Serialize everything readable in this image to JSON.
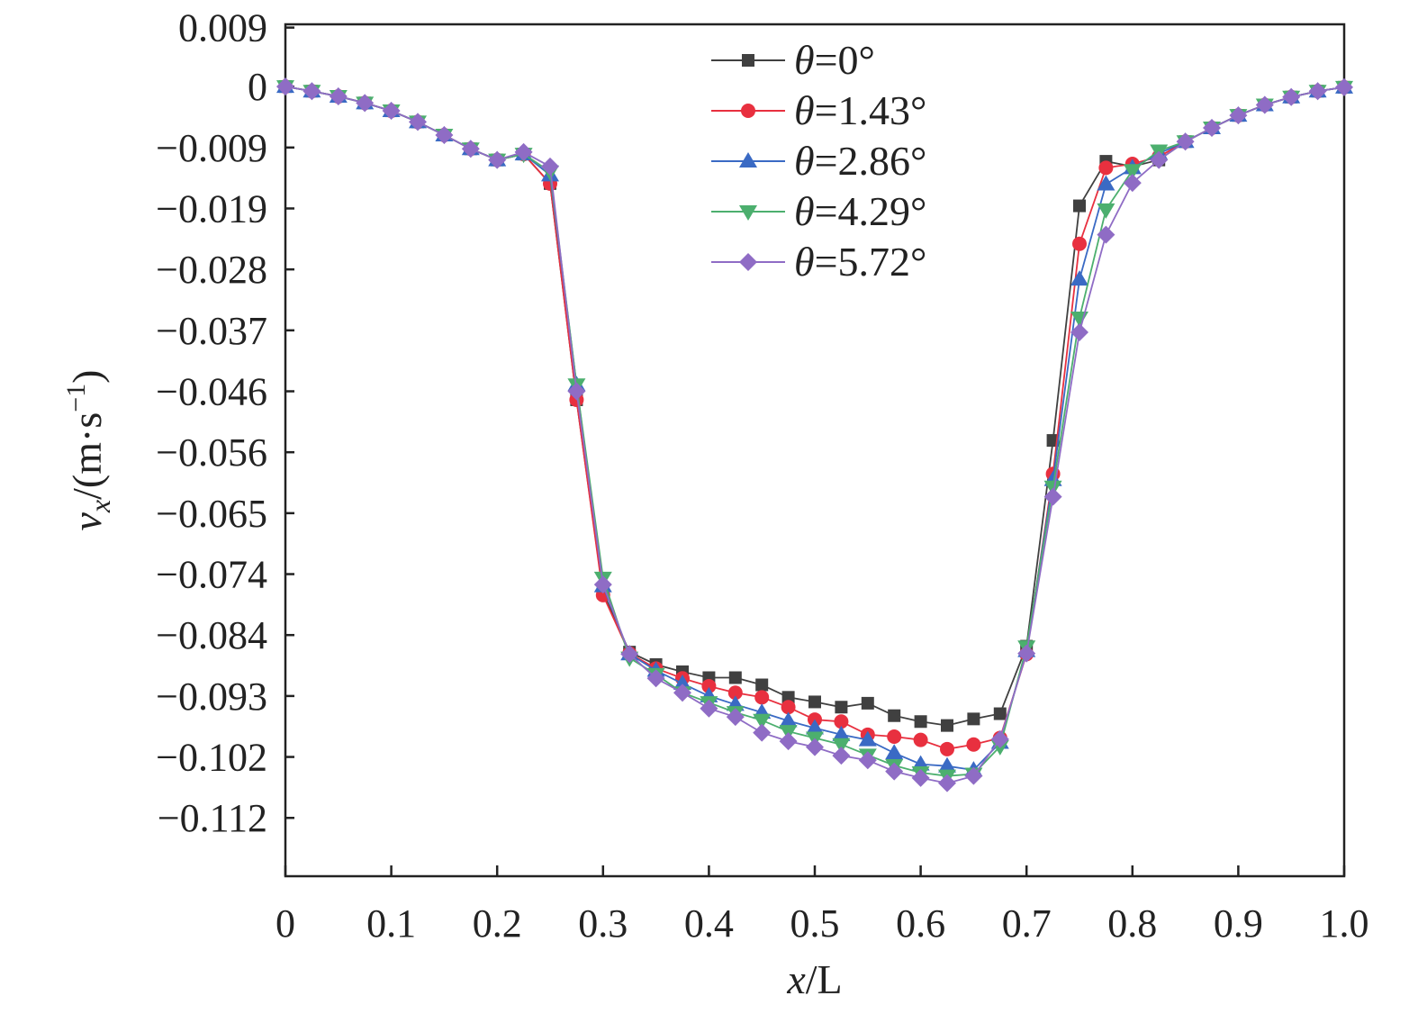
{
  "chart_data": {
    "type": "line",
    "title": "",
    "xlabel": {
      "var": "x",
      "rest": "/L"
    },
    "ylabel": {
      "var": "v",
      "sub": "x",
      "rest": "/(m·s",
      "sup": "−1",
      "close": ")"
    },
    "xlim": [
      0,
      1.0
    ],
    "ylim": [
      -0.1205,
      0.0095
    ],
    "xticks": [
      {
        "v": 0,
        "label": "0"
      },
      {
        "v": 0.1,
        "label": "0.1"
      },
      {
        "v": 0.2,
        "label": "0.2"
      },
      {
        "v": 0.3,
        "label": "0.3"
      },
      {
        "v": 0.4,
        "label": "0.4"
      },
      {
        "v": 0.5,
        "label": "0.5"
      },
      {
        "v": 0.6,
        "label": "0.6"
      },
      {
        "v": 0.7,
        "label": "0.7"
      },
      {
        "v": 0.8,
        "label": "0.8"
      },
      {
        "v": 0.9,
        "label": "0.9"
      },
      {
        "v": 1.0,
        "label": "1.0"
      }
    ],
    "yticks": [
      {
        "v": 0.009,
        "label": "0.009"
      },
      {
        "v": 0,
        "label": "0"
      },
      {
        "v": -0.0093,
        "label": "−0.009"
      },
      {
        "v": -0.0186,
        "label": "−0.019"
      },
      {
        "v": -0.0279,
        "label": "−0.028"
      },
      {
        "v": -0.0372,
        "label": "−0.037"
      },
      {
        "v": -0.0465,
        "label": "−0.046"
      },
      {
        "v": -0.0558,
        "label": "−0.056"
      },
      {
        "v": -0.0651,
        "label": "−0.065"
      },
      {
        "v": -0.0744,
        "label": "−0.074"
      },
      {
        "v": -0.0837,
        "label": "−0.084"
      },
      {
        "v": -0.093,
        "label": "−0.093"
      },
      {
        "v": -0.1023,
        "label": "−0.102"
      },
      {
        "v": -0.1116,
        "label": "−0.112"
      }
    ],
    "grid": false,
    "legend_position": "top-center",
    "x": [
      0,
      0.025,
      0.05,
      0.075,
      0.1,
      0.125,
      0.15,
      0.175,
      0.2,
      0.225,
      0.25,
      0.275,
      0.3,
      0.325,
      0.35,
      0.375,
      0.4,
      0.425,
      0.45,
      0.475,
      0.5,
      0.525,
      0.55,
      0.575,
      0.6,
      0.625,
      0.65,
      0.675,
      0.7,
      0.725,
      0.75,
      0.775,
      0.8,
      0.825,
      0.85,
      0.875,
      0.9,
      0.925,
      0.95,
      0.975,
      1.0
    ],
    "series": [
      {
        "var": "θ",
        "label": "=0°",
        "color": "#404040",
        "marker": "square",
        "values": [
          0,
          -0.0007,
          -0.0015,
          -0.0025,
          -0.0037,
          -0.0054,
          -0.0074,
          -0.0095,
          -0.0112,
          -0.0103,
          -0.0148,
          -0.0478,
          -0.0772,
          -0.0863,
          -0.0882,
          -0.0893,
          -0.0902,
          -0.0902,
          -0.0913,
          -0.0932,
          -0.0939,
          -0.0947,
          -0.0941,
          -0.096,
          -0.0969,
          -0.0975,
          -0.0965,
          -0.0957,
          -0.0854,
          -0.054,
          -0.0182,
          -0.0114,
          -0.0122,
          -0.0112,
          -0.0084,
          -0.0063,
          -0.0044,
          -0.0028,
          -0.0016,
          -0.0007,
          -0.0001
        ]
      },
      {
        "var": "θ",
        "label": "=1.43°",
        "color": "#e8303f",
        "marker": "circle",
        "values": [
          0,
          -0.0007,
          -0.0015,
          -0.0025,
          -0.0037,
          -0.0054,
          -0.0074,
          -0.0095,
          -0.0112,
          -0.0103,
          -0.0148,
          -0.0478,
          -0.0776,
          -0.0865,
          -0.0888,
          -0.0903,
          -0.0915,
          -0.0925,
          -0.0932,
          -0.0947,
          -0.0966,
          -0.0969,
          -0.0989,
          -0.0992,
          -0.0997,
          -0.1011,
          -0.1004,
          -0.0994,
          -0.0866,
          -0.0591,
          -0.024,
          -0.0124,
          -0.0118,
          -0.0107,
          -0.0084,
          -0.0063,
          -0.0044,
          -0.0028,
          -0.0016,
          -0.0007,
          -0.0001
        ]
      },
      {
        "var": "θ",
        "label": "=2.86°",
        "color": "#3a6ac4",
        "marker": "triangle-up",
        "values": [
          0,
          -0.0007,
          -0.0015,
          -0.0025,
          -0.0037,
          -0.0054,
          -0.0074,
          -0.0095,
          -0.0112,
          -0.0103,
          -0.0135,
          -0.0455,
          -0.0762,
          -0.0866,
          -0.0891,
          -0.0911,
          -0.093,
          -0.0943,
          -0.0955,
          -0.0968,
          -0.0979,
          -0.0989,
          -0.0997,
          -0.1017,
          -0.1034,
          -0.1037,
          -0.1043,
          -0.1001,
          -0.0861,
          -0.06,
          -0.0294,
          -0.0149,
          -0.0124,
          -0.0102,
          -0.0084,
          -0.0063,
          -0.0044,
          -0.0028,
          -0.0016,
          -0.0007,
          -0.0001
        ]
      },
      {
        "var": "θ",
        "label": "=4.29°",
        "color": "#4caf6e",
        "marker": "triangle-down",
        "values": [
          0,
          -0.0007,
          -0.0015,
          -0.0025,
          -0.0037,
          -0.0054,
          -0.0074,
          -0.0095,
          -0.0112,
          -0.0103,
          -0.013,
          -0.0455,
          -0.075,
          -0.0872,
          -0.0897,
          -0.0925,
          -0.094,
          -0.0955,
          -0.0967,
          -0.0984,
          -0.0994,
          -0.1004,
          -0.102,
          -0.1036,
          -0.1047,
          -0.1052,
          -0.1049,
          -0.1007,
          -0.0855,
          -0.0611,
          -0.0353,
          -0.0188,
          -0.0128,
          -0.0098,
          -0.0084,
          -0.0063,
          -0.0044,
          -0.0028,
          -0.0016,
          -0.0007,
          -0.0001
        ]
      },
      {
        "var": "θ",
        "label": "=5.72°",
        "color": "#8f6cc5",
        "marker": "diamond",
        "values": [
          0,
          -0.0007,
          -0.0015,
          -0.0025,
          -0.0037,
          -0.0054,
          -0.0074,
          -0.0095,
          -0.0112,
          -0.01,
          -0.0122,
          -0.0465,
          -0.076,
          -0.0866,
          -0.0903,
          -0.0925,
          -0.0949,
          -0.0962,
          -0.0986,
          -0.0999,
          -0.1008,
          -0.1021,
          -0.1028,
          -0.1045,
          -0.1055,
          -0.1063,
          -0.1052,
          -0.0996,
          -0.0865,
          -0.0626,
          -0.0375,
          -0.0226,
          -0.0147,
          -0.0112,
          -0.0084,
          -0.0063,
          -0.0044,
          -0.0028,
          -0.0016,
          -0.0007,
          -0.0001
        ]
      }
    ]
  }
}
